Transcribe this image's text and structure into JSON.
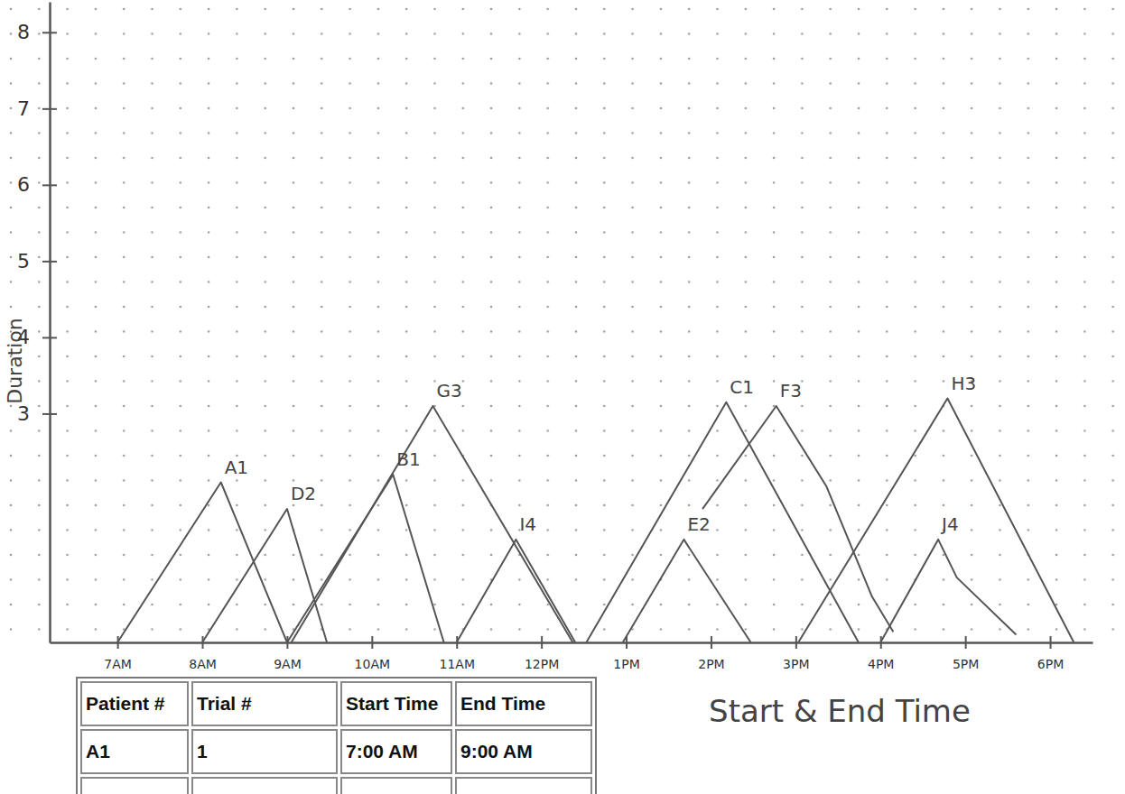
{
  "chart_data": {
    "type": "line",
    "x_label": "Start & End Time",
    "y_label": "Duration",
    "color": "#555555",
    "xlim": [
      6.2,
      18.5
    ],
    "xticks": [
      {
        "value": 7,
        "label": "7AM"
      },
      {
        "value": 8,
        "label": "8AM"
      },
      {
        "value": 9,
        "label": "9AM"
      },
      {
        "value": 10,
        "label": "10AM"
      },
      {
        "value": 11,
        "label": "11AM"
      },
      {
        "value": 12,
        "label": "12PM"
      },
      {
        "value": 13,
        "label": "1PM"
      },
      {
        "value": 14,
        "label": "2PM"
      },
      {
        "value": 15,
        "label": "3PM"
      },
      {
        "value": 16,
        "label": "4PM"
      },
      {
        "value": 17,
        "label": "5PM"
      },
      {
        "value": 18,
        "label": "6PM"
      }
    ],
    "ylim": [
      0,
      8.4
    ],
    "yticks": [
      3,
      4,
      5,
      6,
      7,
      8
    ],
    "series": [
      {
        "name": "A1",
        "x": [
          7.0,
          8.22,
          9.0
        ],
        "values": [
          0,
          2.1,
          0
        ]
      },
      {
        "name": "D2",
        "x": [
          8.0,
          9.0,
          9.47
        ],
        "values": [
          0,
          1.75,
          0
        ]
      },
      {
        "name": "B1",
        "x": [
          9.0,
          10.25,
          10.85
        ],
        "values": [
          0,
          2.2,
          0
        ]
      },
      {
        "name": "G3",
        "x": [
          9.05,
          10.72,
          12.37
        ],
        "values": [
          0,
          3.1,
          0
        ]
      },
      {
        "name": "I4",
        "x": [
          11.0,
          11.7,
          12.4
        ],
        "values": [
          0,
          1.35,
          0
        ]
      },
      {
        "name": "C1",
        "x": [
          12.53,
          14.18,
          15.74
        ],
        "values": [
          0,
          3.15,
          0
        ]
      },
      {
        "name": "E2",
        "x": [
          12.96,
          13.68,
          14.47
        ],
        "values": [
          0,
          1.35,
          0
        ]
      },
      {
        "name": "F3",
        "x": [
          13.9,
          14.77,
          15.36,
          15.9,
          16.15
        ],
        "values": [
          1.75,
          3.1,
          2.05,
          0.6,
          0.14
        ]
      },
      {
        "name": "H3",
        "x": [
          15.03,
          16.79,
          18.28
        ],
        "values": [
          0,
          3.2,
          0
        ]
      },
      {
        "name": "J4",
        "x": [
          16.0,
          16.68,
          16.9,
          17.6
        ],
        "values": [
          0,
          1.35,
          0.85,
          0.1
        ]
      }
    ]
  },
  "table": {
    "columns": [
      "Patient #",
      "Trial #",
      "Start Time",
      "End Time"
    ],
    "rows": [
      [
        "A1",
        "1",
        "7:00 AM",
        "9:00 AM"
      ]
    ]
  }
}
